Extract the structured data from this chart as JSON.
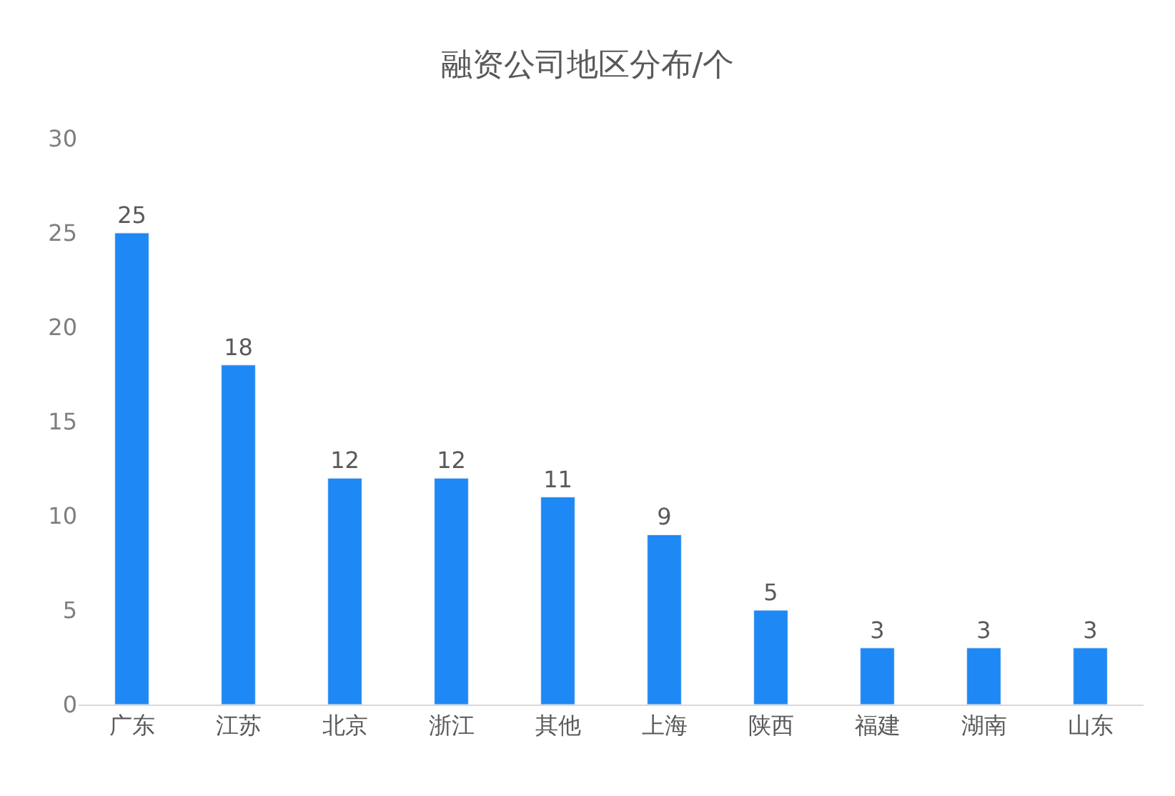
{
  "chart_data": {
    "type": "bar",
    "title": "融资公司地区分布/个",
    "categories": [
      "广东",
      "江苏",
      "北京",
      "浙江",
      "其他",
      "上海",
      "陕西",
      "福建",
      "湖南",
      "山东"
    ],
    "values": [
      25,
      18,
      12,
      12,
      11,
      9,
      5,
      3,
      3,
      3
    ],
    "color": "#1e88f5",
    "ylim": [
      0,
      30
    ],
    "yticks": [
      0,
      5,
      10,
      15,
      20,
      25,
      30
    ],
    "grid": false,
    "data_labels": true
  }
}
